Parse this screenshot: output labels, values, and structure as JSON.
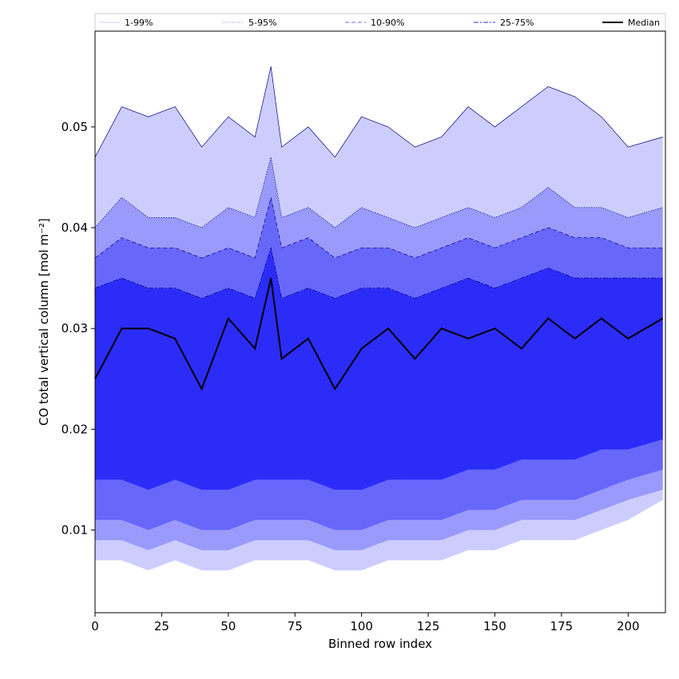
{
  "chart_data": {
    "type": "area",
    "xlabel": "Binned row index",
    "ylabel": "CO total vertical column [mol m⁻²]",
    "xlim": [
      0,
      214
    ],
    "ylim": [
      0.0018,
      0.0595
    ],
    "xticks": [
      0,
      25,
      50,
      75,
      100,
      125,
      150,
      175,
      200
    ],
    "xtick_labels": [
      "0",
      "25",
      "50",
      "75",
      "100",
      "125",
      "150",
      "175",
      "200"
    ],
    "yticks": [
      0.01,
      0.02,
      0.03,
      0.04,
      0.05
    ],
    "ytick_labels": [
      "0.01",
      "0.02",
      "0.03",
      "0.04",
      "0.05"
    ],
    "grid": false,
    "legend_position": "top, above plot",
    "colors": {
      "band_1_99": "#cdcdfd",
      "band_5_95": "#9a9afb",
      "band_10_90": "#6767fa",
      "band_25_75": "#2c2cf9",
      "median": "#000000",
      "edge_lines": "#000080"
    },
    "legend": [
      {
        "label": "1-99%",
        "style": "solid-thin"
      },
      {
        "label": "5-95%",
        "style": "dotted"
      },
      {
        "label": "10-90%",
        "style": "dashed"
      },
      {
        "label": "25-75%",
        "style": "dashdot"
      },
      {
        "label": "Median",
        "style": "solid-thick"
      }
    ],
    "x": [
      0,
      10,
      20,
      30,
      40,
      50,
      60,
      66,
      70,
      80,
      90,
      100,
      110,
      120,
      130,
      140,
      150,
      160,
      170,
      180,
      190,
      200,
      213
    ],
    "series": [
      {
        "name": "1-99%",
        "upper": [
          0.047,
          0.052,
          0.051,
          0.052,
          0.048,
          0.051,
          0.049,
          0.056,
          0.048,
          0.05,
          0.047,
          0.051,
          0.05,
          0.048,
          0.049,
          0.052,
          0.05,
          0.052,
          0.054,
          0.053,
          0.051,
          0.048,
          0.049
        ],
        "lower": [
          0.007,
          0.007,
          0.006,
          0.007,
          0.006,
          0.006,
          0.007,
          0.007,
          0.007,
          0.007,
          0.006,
          0.006,
          0.007,
          0.007,
          0.007,
          0.008,
          0.008,
          0.009,
          0.009,
          0.009,
          0.01,
          0.011,
          0.013
        ]
      },
      {
        "name": "5-95%",
        "upper": [
          0.04,
          0.043,
          0.041,
          0.041,
          0.04,
          0.042,
          0.041,
          0.047,
          0.041,
          0.042,
          0.04,
          0.042,
          0.041,
          0.04,
          0.041,
          0.042,
          0.041,
          0.042,
          0.044,
          0.042,
          0.042,
          0.041,
          0.042
        ],
        "lower": [
          0.009,
          0.009,
          0.008,
          0.009,
          0.008,
          0.008,
          0.009,
          0.009,
          0.009,
          0.009,
          0.008,
          0.008,
          0.009,
          0.009,
          0.009,
          0.01,
          0.01,
          0.011,
          0.011,
          0.011,
          0.012,
          0.013,
          0.014
        ]
      },
      {
        "name": "10-90%",
        "upper": [
          0.037,
          0.039,
          0.038,
          0.038,
          0.037,
          0.038,
          0.037,
          0.043,
          0.038,
          0.039,
          0.037,
          0.038,
          0.038,
          0.037,
          0.038,
          0.039,
          0.038,
          0.039,
          0.04,
          0.039,
          0.039,
          0.038,
          0.038
        ],
        "lower": [
          0.011,
          0.011,
          0.01,
          0.011,
          0.01,
          0.01,
          0.011,
          0.011,
          0.011,
          0.011,
          0.01,
          0.01,
          0.011,
          0.011,
          0.011,
          0.012,
          0.012,
          0.013,
          0.013,
          0.013,
          0.014,
          0.015,
          0.016
        ]
      },
      {
        "name": "25-75%",
        "upper": [
          0.034,
          0.035,
          0.034,
          0.034,
          0.033,
          0.034,
          0.033,
          0.038,
          0.033,
          0.034,
          0.033,
          0.034,
          0.034,
          0.033,
          0.034,
          0.035,
          0.034,
          0.035,
          0.036,
          0.035,
          0.035,
          0.035,
          0.035
        ],
        "lower": [
          0.015,
          0.015,
          0.014,
          0.015,
          0.014,
          0.014,
          0.015,
          0.015,
          0.015,
          0.015,
          0.014,
          0.014,
          0.015,
          0.015,
          0.015,
          0.016,
          0.016,
          0.017,
          0.017,
          0.017,
          0.018,
          0.018,
          0.019
        ]
      },
      {
        "name": "Median",
        "values": [
          0.025,
          0.03,
          0.03,
          0.029,
          0.024,
          0.031,
          0.028,
          0.035,
          0.027,
          0.029,
          0.024,
          0.028,
          0.03,
          0.027,
          0.03,
          0.029,
          0.03,
          0.028,
          0.031,
          0.029,
          0.031,
          0.029,
          0.031
        ]
      }
    ]
  }
}
